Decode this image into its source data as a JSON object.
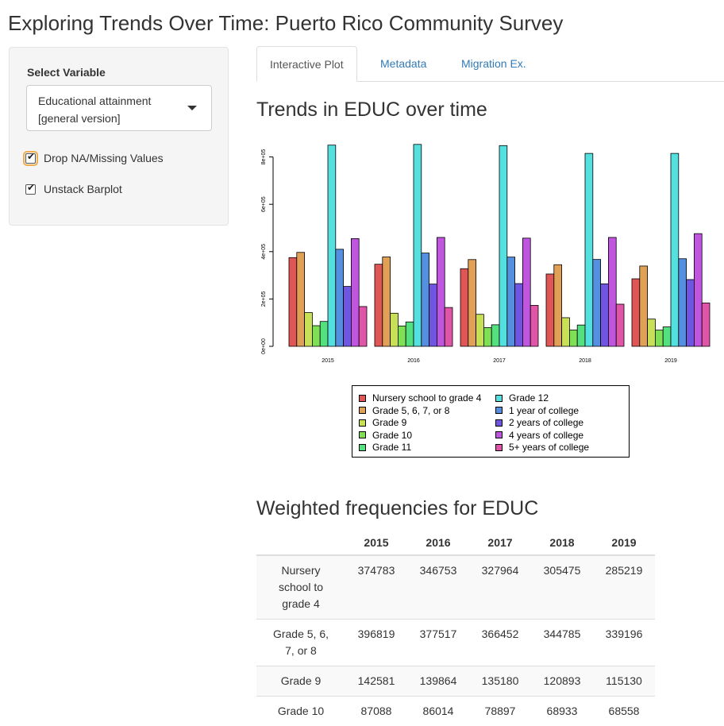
{
  "page": {
    "title": "Exploring Trends Over Time: Puerto Rico Community Survey"
  },
  "sidebar": {
    "select_label": "Select Variable",
    "select_value": "Educational attainment [general version]",
    "checkboxes": [
      {
        "label": "Drop NA/Missing Values",
        "checked": true
      },
      {
        "label": "Unstack Barplot",
        "checked": true
      }
    ]
  },
  "tabs": [
    "Interactive Plot",
    "Metadata",
    "Migration Ex."
  ],
  "main": {
    "plot_title": "Trends in EDUC over time",
    "table_title": "Weighted frequencies for EDUC"
  },
  "colors": [
    "#e05555",
    "#e0a055",
    "#c8e055",
    "#80e055",
    "#55e080",
    "#55e0e0",
    "#5590e0",
    "#7055e0",
    "#c055e0",
    "#e055a8"
  ],
  "chart_data": {
    "type": "bar",
    "categories": [
      "2015",
      "2016",
      "2017",
      "2018",
      "2019"
    ],
    "ylim": [
      0,
      850000
    ],
    "yticks": [
      "0e+00",
      "2e+05",
      "4e+05",
      "6e+05",
      "8e+05"
    ],
    "ytick_values": [
      0,
      200000,
      400000,
      600000,
      800000
    ],
    "series": [
      {
        "name": "Nursery school to grade 4",
        "values": [
          374783,
          346753,
          327964,
          305475,
          285219
        ]
      },
      {
        "name": "Grade 5, 6, 7, or 8",
        "values": [
          396819,
          377517,
          366452,
          344785,
          339196
        ]
      },
      {
        "name": "Grade 9",
        "values": [
          142581,
          139864,
          135180,
          120893,
          115130
        ]
      },
      {
        "name": "Grade 10",
        "values": [
          87088,
          86014,
          78897,
          68933,
          68558
        ]
      },
      {
        "name": "Grade 11",
        "values": [
          105000,
          103000,
          91000,
          90000,
          82000
        ]
      },
      {
        "name": "Grade 12",
        "values": [
          850000,
          853000,
          848000,
          815000,
          815000
        ]
      },
      {
        "name": "1 year of college",
        "values": [
          410000,
          394000,
          377000,
          367000,
          370000
        ]
      },
      {
        "name": "2 years of college",
        "values": [
          253000,
          263000,
          265000,
          264000,
          282000
        ]
      },
      {
        "name": "4 years of college",
        "values": [
          455000,
          460000,
          457000,
          460000,
          476000
        ]
      },
      {
        "name": "5+ years of college",
        "values": [
          168000,
          164000,
          173000,
          178000,
          183000
        ]
      }
    ]
  },
  "table": {
    "headers": [
      "",
      "2015",
      "2016",
      "2017",
      "2018",
      "2019"
    ],
    "rows": [
      [
        "Nursery school to grade 4",
        "374783",
        "346753",
        "327964",
        "305475",
        "285219"
      ],
      [
        "Grade 5, 6, 7, or 8",
        "396819",
        "377517",
        "366452",
        "344785",
        "339196"
      ],
      [
        "Grade 9",
        "142581",
        "139864",
        "135180",
        "120893",
        "115130"
      ],
      [
        "Grade 10",
        "87088",
        "86014",
        "78897",
        "68933",
        "68558"
      ]
    ]
  }
}
